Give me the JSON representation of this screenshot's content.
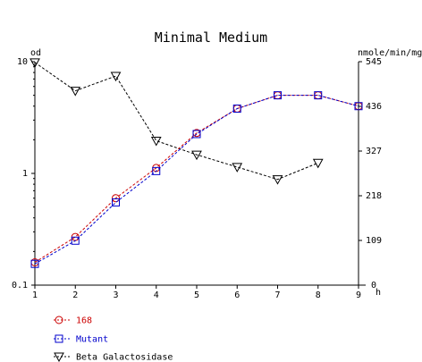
{
  "chart_data": {
    "type": "line",
    "title": "Minimal Medium",
    "x": [
      1,
      2,
      3,
      4,
      5,
      6,
      7,
      8,
      9
    ],
    "xunit": "h",
    "xticks": [
      "1",
      "2",
      "3",
      "4",
      "5",
      "6",
      "7",
      "8",
      "9"
    ],
    "y_left": {
      "label": "od",
      "scale": "log",
      "ylim": [
        0.1,
        10
      ],
      "ticks": [
        "0.1",
        "1",
        "10"
      ]
    },
    "y_right": {
      "label": "nmole/min/mg",
      "scale": "linear",
      "ylim": [
        0,
        545
      ],
      "ticks": [
        "0",
        "109",
        "218",
        "327",
        "436",
        "545"
      ]
    },
    "grid": false,
    "legend_position": "bottom-left",
    "series": [
      {
        "name": "168",
        "axis": "left",
        "color": "#cc0000",
        "marker": "circle",
        "x": [
          1,
          2,
          3,
          4,
          5,
          6,
          7,
          8,
          9
        ],
        "values": [
          0.16,
          0.27,
          0.6,
          1.12,
          2.3,
          3.8,
          5.0,
          5.0,
          4.0
        ]
      },
      {
        "name": "Mutant",
        "axis": "left",
        "color": "#0000cc",
        "marker": "square",
        "x": [
          1,
          2,
          3,
          4,
          5,
          6,
          7,
          8,
          9
        ],
        "values": [
          0.155,
          0.25,
          0.55,
          1.05,
          2.25,
          3.8,
          5.0,
          5.0,
          4.0
        ]
      },
      {
        "name": "Beta Galactosidase",
        "axis": "right",
        "color": "#000000",
        "marker": "triangle-down",
        "x": [
          1,
          2,
          3,
          4,
          5,
          6,
          7,
          8
        ],
        "values": [
          543,
          474,
          510,
          352,
          318,
          288,
          258,
          298
        ]
      }
    ]
  }
}
